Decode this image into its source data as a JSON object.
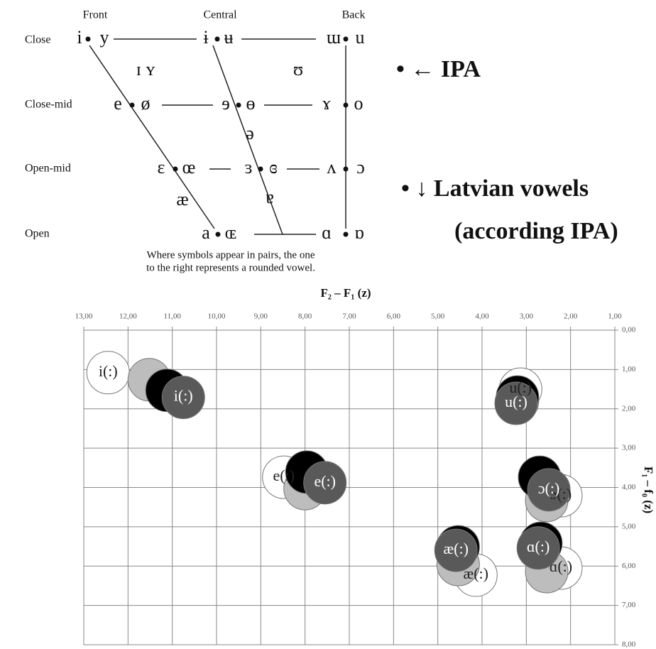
{
  "ipa_chart": {
    "columns": [
      "Front",
      "Central",
      "Back"
    ],
    "rows": [
      "Close",
      "Close-mid",
      "Open-mid",
      "Open"
    ],
    "symbols": [
      "i",
      "y",
      "ɨ",
      "ʉ",
      "ɯ",
      "u",
      "ɪ ʏ",
      "ʊ",
      "e",
      "ø",
      "ɘ",
      "ɵ",
      "ɤ",
      "o",
      "ə",
      "ɛ",
      "œ",
      "ɜ",
      "ɞ",
      "ʌ",
      "ɔ",
      "æ",
      "ɐ",
      "a",
      "ɶ",
      "ɑ",
      "ɒ"
    ],
    "note": [
      "Where symbols appear in pairs, the one",
      "to the right represents a rounded vowel."
    ]
  },
  "bullets": [
    "• ← IPA",
    "• ↓ Latvian vowels",
    "(according IPA)"
  ],
  "chart_data": {
    "type": "bubble",
    "x_label": "F₂ – F₁ (z)",
    "y_label": "F₁ – f₀ (z)",
    "xlim": [
      13,
      1
    ],
    "ylim": [
      0,
      8
    ],
    "grid": true,
    "xticks": [
      {
        "value": 13,
        "label": "13,00"
      },
      {
        "value": 12,
        "label": "12,00"
      },
      {
        "value": 11,
        "label": "11,00"
      },
      {
        "value": 10,
        "label": "10,00"
      },
      {
        "value": 9,
        "label": "9,00"
      },
      {
        "value": 8,
        "label": "8,00"
      },
      {
        "value": 7,
        "label": "7,00"
      },
      {
        "value": 6,
        "label": "6,00"
      },
      {
        "value": 5,
        "label": "5,00"
      },
      {
        "value": 4,
        "label": "4,00"
      },
      {
        "value": 3,
        "label": "3,00"
      },
      {
        "value": 2,
        "label": "2,00"
      },
      {
        "value": 1,
        "label": "1,00"
      }
    ],
    "yticks": [
      {
        "value": 0,
        "label": "0,00"
      },
      {
        "value": 1,
        "label": "1,00"
      },
      {
        "value": 2,
        "label": "2,00"
      },
      {
        "value": 3,
        "label": "3,00"
      },
      {
        "value": 4,
        "label": "4,00"
      },
      {
        "value": 5,
        "label": "5,00"
      },
      {
        "value": 6,
        "label": "6,00"
      },
      {
        "value": 7,
        "label": "7,00"
      },
      {
        "value": 8,
        "label": "8,00"
      }
    ],
    "series": [
      {
        "color": "#ffffff",
        "x": [
          12.45,
          3.13,
          8.48,
          2.22,
          4.14,
          2.22
        ],
        "values": [
          1.08,
          1.5,
          3.74,
          4.21,
          6.23,
          6.05
        ],
        "labels": [
          "i(:)",
          "u(:)",
          "e(:)",
          "ɔ(:)",
          "æ(:)",
          "ɑ(:)"
        ]
      },
      {
        "color": "#bdbdbd",
        "x": [
          11.52,
          3.2,
          8.0,
          2.54,
          4.54,
          2.54
        ],
        "values": [
          1.26,
          1.8,
          4.03,
          4.33,
          5.96,
          6.14
        ]
      },
      {
        "color": "#000000",
        "x": [
          11.12,
          3.2,
          7.96,
          2.7,
          4.54,
          2.67
        ],
        "values": [
          1.53,
          1.7,
          3.61,
          3.74,
          5.51,
          5.42
        ]
      },
      {
        "color": "#595959",
        "x": [
          10.75,
          3.23,
          7.55,
          2.49,
          4.59,
          2.73
        ],
        "values": [
          1.71,
          1.86,
          3.88,
          4.06,
          5.6,
          5.54
        ],
        "labels": [
          "i(:)",
          "u(:)",
          "e(:)",
          "ɔ(:)",
          "æ(:)",
          "ɑ(:)"
        ]
      }
    ]
  }
}
